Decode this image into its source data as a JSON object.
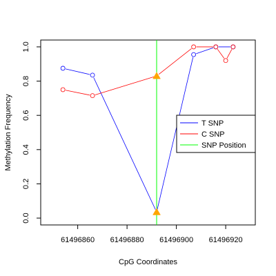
{
  "chart_data": {
    "type": "line",
    "xlabel": "CpG Coordinates",
    "ylabel": "Methylation Frequency",
    "xlim": [
      61496845,
      61496932
    ],
    "ylim": [
      -0.04,
      1.04
    ],
    "x_ticks": [
      61496860,
      61496880,
      61496900,
      61496920
    ],
    "y_ticks": [
      0.0,
      0.2,
      0.4,
      0.6,
      0.8,
      1.0
    ],
    "x_tick_labels": [
      "61496860",
      "61496880",
      "61496900",
      "61496920"
    ],
    "y_tick_labels": [
      "0.0",
      "0.2",
      "0.4",
      "0.6",
      "0.8",
      "1.0"
    ],
    "snp_position": 61496892,
    "series": [
      {
        "name": "T SNP",
        "color": "#0000ff",
        "x": [
          61496854,
          61496866,
          61496892,
          61496907,
          61496916,
          61496923
        ],
        "y": [
          0.875,
          0.835,
          0.035,
          0.955,
          1.0,
          1.0
        ]
      },
      {
        "name": "C SNP",
        "color": "#ff0000",
        "x": [
          61496854,
          61496866,
          61496892,
          61496907,
          61496916,
          61496920,
          61496923
        ],
        "y": [
          0.75,
          0.715,
          0.83,
          1.0,
          1.0,
          0.92,
          1.0
        ]
      }
    ],
    "snp_line": {
      "name": "SNP Position",
      "color": "#00ff00"
    },
    "marker_color": "#ffa500",
    "legend": {
      "position": "right",
      "entries": [
        {
          "label": "T SNP",
          "color": "#0000ff"
        },
        {
          "label": "C SNP",
          "color": "#ff0000"
        },
        {
          "label": "SNP Position",
          "color": "#00ff00"
        }
      ]
    },
    "grid": false
  }
}
